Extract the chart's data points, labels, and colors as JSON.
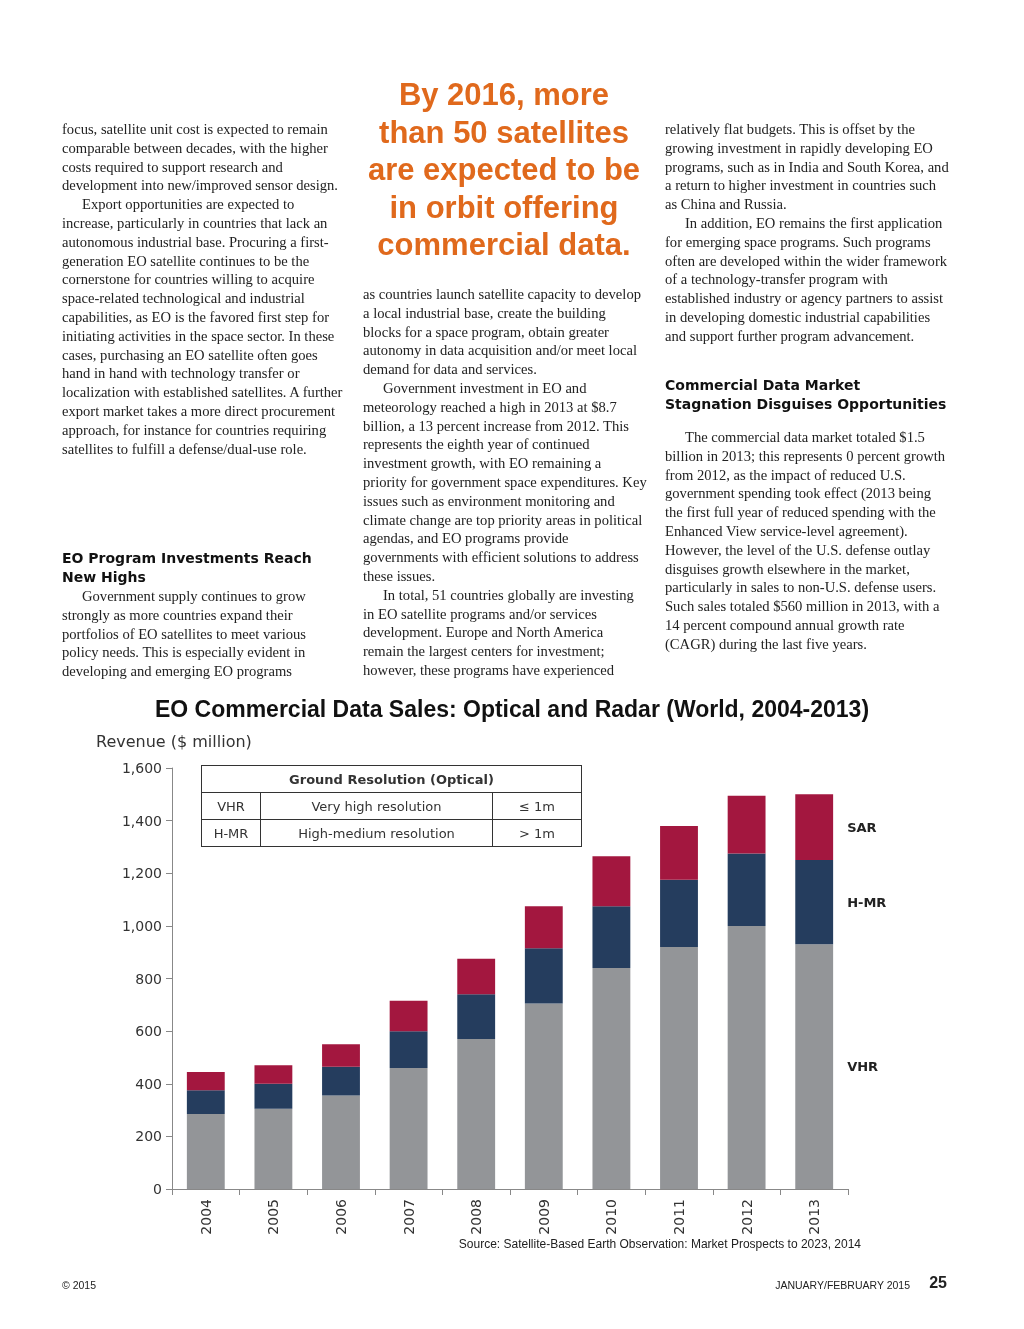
{
  "chart_data": {
    "type": "bar",
    "title": "EO Commercial Data Sales: Optical and Radar (World, 2004-2013)",
    "ylabel": "Revenue ($ million)",
    "categories": [
      "2004",
      "2005",
      "2006",
      "2007",
      "2008",
      "2009",
      "2010",
      "2011",
      "2012",
      "2013"
    ],
    "stacked": true,
    "series": [
      {
        "name": "VHR",
        "color": "#939598",
        "values": [
          285,
          305,
          355,
          460,
          570,
          705,
          840,
          920,
          1000,
          930
        ]
      },
      {
        "name": "H-MR",
        "color": "#253d5e",
        "values": [
          90,
          95,
          110,
          140,
          170,
          210,
          235,
          255,
          275,
          320
        ]
      },
      {
        "name": "SAR",
        "color": "#a3173f",
        "values": [
          70,
          70,
          85,
          115,
          135,
          160,
          190,
          205,
          220,
          250
        ]
      }
    ],
    "ylim": [
      0,
      1600
    ],
    "yticks": [
      0,
      200,
      400,
      600,
      800,
      {
        "value": 1000,
        "label": "1,000"
      },
      {
        "value": 1200,
        "label": "1,200"
      },
      {
        "value": 1400,
        "label": "1,400"
      },
      {
        "value": 1600,
        "label": "1,600"
      }
    ],
    "annotations": [
      "focus, satellite unit cost is expected to remain comparable between decades, with the higher costs required to support research and development into new/improved sensor design.\nExport opportunities are expected to increase, particularly in countries that lack an autonomous industrial base. Procuring a first-generation EO satellite continues to be the cornerstone for countries willing to acquire space-related technological and industrial capabilities, as EO is the favored first step for initiating activities in the space sector. In these cases, purchasing an EO satellite often goes hand in hand with technology transfer or localization with established satellites. A further export market takes a more direct procurement approach, for instance for countries requiring satellites to fulfill a defense/dual-use role.",
      "EO Program Investments Reach New Highs",
      "Government supply continues to grow strongly as more countries expand their portfolios of EO satellites to meet various policy needs. This is especially evident in developing and emerging EO programs",
      "By 2016, more than 50 satellites are expected to be in orbit offering commercial data.",
      "as countries launch satellite capacity to develop a local industrial base, create the building blocks for a space program, obtain greater autonomy in data acquisition and/or meet local demand for data and services.\nGovernment investment in EO and meteorology reached a high in 2013 at $8.7 billion, a 13 percent increase from 2012. This represents the eighth year of continued investment growth, with EO remaining a priority for government space expenditures. Key issues such as environment monitoring and climate change are top priority areas in political agendas, and EO programs provide governments with efficient solutions to address these issues.\nIn total, 51 countries globally are investing in EO satellite programs and/or services development. Europe and North America remain the largest centers for investment; however, these programs have experienced",
      "relatively flat budgets. This is offset by the growing investment in rapidly developing EO programs, such as in India and South Korea, and a return to higher investment in countries such as China and Russia.\nIn addition, EO remains the first application for emerging space programs. Such programs often are developed within the wider framework of a technology-transfer program with established industry or agency partners to assist in developing domestic industrial capabilities and support further program advancement.",
      "Commercial Data Market Stagnation Disguises Opportunities",
      "The commercial data market totaled $1.5 billion in 2013; this represents 0 percent growth from 2012, as the impact of reduced U.S. government spending took effect (2013 being the first full year of reduced spending with the Enhanced View service-level agreement). However, the level of the U.S. defense outlay disguises growth elsewhere in the market, particularly in sales to non-U.S. defense users. Such sales totaled $560 million in 2013, with a 14 percent compound annual growth rate (CAGR) during the last five years.",
      "Ground Resolution (Optical)",
      "VHR",
      "Very high resolution",
      "≤ 1m",
      "H-MR",
      "High-medium resolution",
      "> 1m",
      "Source: Satellite-Based Earth Observation: Market Prospects to 2023, 2014",
      "© 2015",
      "JANUARY/FEBRUARY 2015",
      "25"
    ]
  }
}
